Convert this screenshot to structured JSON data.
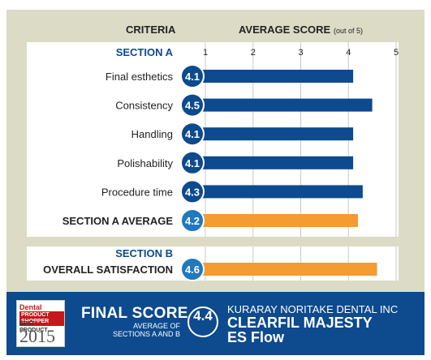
{
  "chart_data": {
    "type": "bar",
    "orientation": "horizontal",
    "header": {
      "criteria": "CRITERIA",
      "score_main": "AVERAGE SCORE",
      "score_sub": "(out of 5)"
    },
    "x_ticks": [
      "1",
      "2",
      "3",
      "4",
      "5"
    ],
    "xlim": [
      1,
      5
    ],
    "grid": true,
    "sections": [
      {
        "title": "SECTION A",
        "rows": [
          {
            "label": "Final esthetics",
            "value": 4.1,
            "value_label": "4.1",
            "kind": "criterion"
          },
          {
            "label": "Consistency",
            "value": 4.5,
            "value_label": "4.5",
            "kind": "criterion"
          },
          {
            "label": "Handling",
            "value": 4.1,
            "value_label": "4.1",
            "kind": "criterion"
          },
          {
            "label": "Polishability",
            "value": 4.1,
            "value_label": "4.1",
            "kind": "criterion"
          },
          {
            "label": "Procedure time",
            "value": 4.3,
            "value_label": "4.3",
            "kind": "criterion"
          },
          {
            "label": "SECTION A AVERAGE",
            "value": 4.2,
            "value_label": "4.2",
            "kind": "average"
          }
        ]
      },
      {
        "title": "SECTION B",
        "rows": [
          {
            "label": "OVERALL SATISFACTION",
            "value": 4.6,
            "value_label": "4.6",
            "kind": "average"
          }
        ]
      }
    ],
    "colors": {
      "criterion_bar": "#0d4a8e",
      "average_bar": "#f49b32",
      "criterion_circle": "#0d4a8e",
      "average_circle": "#1f79bf",
      "section_title": "#0d4a8e",
      "panel": "#ffffff",
      "frame": "#dcdcc6",
      "grid": "#c8c8c8"
    }
  },
  "footer": {
    "badge": {
      "line1": "Dental",
      "line2": "PRODUCT SHOPPER",
      "line3": "BEST PRODUCT",
      "line4": "2015"
    },
    "final_score_title": "FINAL SCORE",
    "final_score_sub1": "AVERAGE OF",
    "final_score_sub2": "SECTIONS A AND B",
    "final_score_value": "4.4",
    "company": "KURARAY NORITAKE DENTAL INC",
    "product_line1": "CLEARFIL MAJESTY",
    "product_line2": "ES Flow",
    "background": "#0d4a8e"
  }
}
